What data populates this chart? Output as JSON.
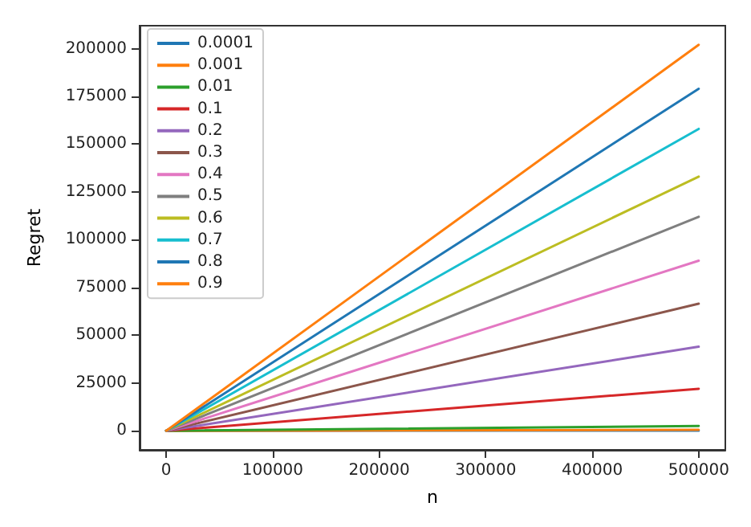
{
  "chart_data": {
    "type": "line",
    "xlabel": "n",
    "ylabel": "Regret",
    "x": [
      0,
      500000
    ],
    "xlim": [
      -25000,
      525000
    ],
    "xticks": [
      0,
      100000,
      200000,
      300000,
      400000,
      500000
    ],
    "ylim": [
      -10000,
      212000
    ],
    "yticks": [
      0,
      25000,
      50000,
      75000,
      100000,
      125000,
      150000,
      175000,
      200000
    ],
    "grid": false,
    "legend": "top left",
    "marker": "none",
    "line_style": "solid",
    "series": [
      {
        "name": "0.0001",
        "color": "#1f77b4",
        "values": [
          0,
          100
        ]
      },
      {
        "name": "0.001",
        "color": "#ff7f0e",
        "values": [
          0,
          500
        ]
      },
      {
        "name": "0.01",
        "color": "#2ca02c",
        "values": [
          0,
          2500
        ]
      },
      {
        "name": "0.1",
        "color": "#d62728",
        "values": [
          0,
          22000
        ]
      },
      {
        "name": "0.2",
        "color": "#9467bd",
        "values": [
          0,
          44000
        ]
      },
      {
        "name": "0.3",
        "color": "#8c564b",
        "values": [
          0,
          66500
        ]
      },
      {
        "name": "0.4",
        "color": "#e377c2",
        "values": [
          0,
          89000
        ]
      },
      {
        "name": "0.5",
        "color": "#7f7f7f",
        "values": [
          0,
          112000
        ]
      },
      {
        "name": "0.6",
        "color": "#bcbd22",
        "values": [
          0,
          133000
        ]
      },
      {
        "name": "0.7",
        "color": "#17becf",
        "values": [
          0,
          158000
        ]
      },
      {
        "name": "0.8",
        "color": "#1f77b4",
        "values": [
          0,
          179000
        ]
      },
      {
        "name": "0.9",
        "color": "#ff7f0e",
        "values": [
          0,
          202000
        ]
      }
    ]
  }
}
